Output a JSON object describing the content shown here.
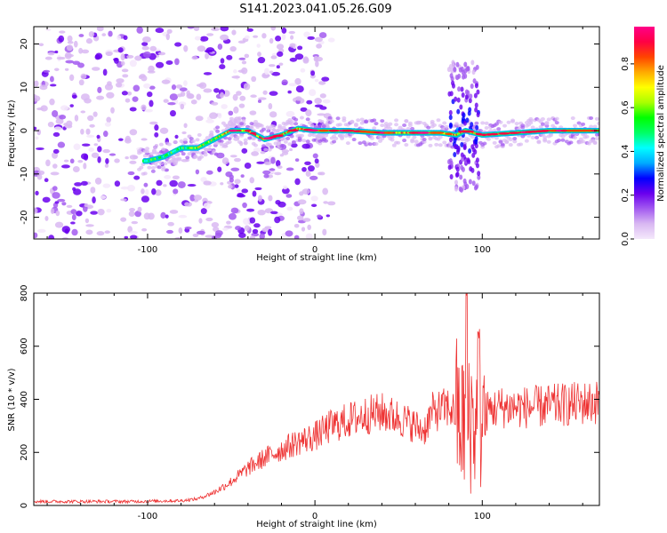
{
  "title": "S141.2023.041.05.26.G09",
  "chart_data": [
    {
      "type": "heatmap",
      "xlabel": "Height of straight line (km)",
      "ylabel": "Frequency (Hz)",
      "xlim": [
        -168,
        170
      ],
      "ylim": [
        -25,
        24
      ],
      "xticks": [
        -100,
        0,
        100
      ],
      "yticks": [
        -20,
        -10,
        0,
        10,
        20
      ],
      "colorbar": {
        "label": "Normalized spectral amplitude",
        "range": [
          0,
          0.97
        ],
        "ticks": [
          0.0,
          0.2,
          0.4,
          0.6,
          0.8
        ],
        "colors": [
          "#f4e8fb",
          "#d9b8f2",
          "#a35af0",
          "#6a00ee",
          "#0000ff",
          "#00aaff",
          "#00ffff",
          "#00ff66",
          "#00ff00",
          "#aaff00",
          "#ffff00",
          "#ffaa00",
          "#ff4400",
          "#ff0044",
          "#ff0088"
        ]
      },
      "ridge": [
        {
          "x": -100,
          "f": -7
        },
        {
          "x": -90,
          "f": -6
        },
        {
          "x": -80,
          "f": -4
        },
        {
          "x": -70,
          "f": -4
        },
        {
          "x": -60,
          "f": -2
        },
        {
          "x": -50,
          "f": 0
        },
        {
          "x": -40,
          "f": 0
        },
        {
          "x": -30,
          "f": -2
        },
        {
          "x": -20,
          "f": -1
        },
        {
          "x": -10,
          "f": 0.5
        },
        {
          "x": 0,
          "f": 0
        },
        {
          "x": 20,
          "f": 0
        },
        {
          "x": 40,
          "f": -0.5
        },
        {
          "x": 60,
          "f": -0.5
        },
        {
          "x": 75,
          "f": -0.5
        },
        {
          "x": 85,
          "f": -1
        },
        {
          "x": 90,
          "f": 0
        },
        {
          "x": 100,
          "f": -1
        },
        {
          "x": 120,
          "f": -0.5
        },
        {
          "x": 140,
          "f": 0
        },
        {
          "x": 170,
          "f": 0
        }
      ]
    },
    {
      "type": "line",
      "xlabel": "Height of straight line (km)",
      "ylabel": "SNR (10 * v/v)",
      "xlim": [
        -168,
        170
      ],
      "ylim": [
        0,
        800
      ],
      "xticks": [
        -100,
        0,
        100
      ],
      "yticks": [
        0,
        200,
        400,
        600,
        800
      ],
      "color": "#ee3333",
      "series": [
        {
          "points": [
            {
              "x": -168,
              "y": 15
            },
            {
              "x": -140,
              "y": 15
            },
            {
              "x": -110,
              "y": 15
            },
            {
              "x": -80,
              "y": 18
            },
            {
              "x": -70,
              "y": 25
            },
            {
              "x": -60,
              "y": 50
            },
            {
              "x": -50,
              "y": 90
            },
            {
              "x": -40,
              "y": 140
            },
            {
              "x": -30,
              "y": 180
            },
            {
              "x": -20,
              "y": 210
            },
            {
              "x": -10,
              "y": 240
            },
            {
              "x": 0,
              "y": 260
            },
            {
              "x": 10,
              "y": 300
            },
            {
              "x": 20,
              "y": 320
            },
            {
              "x": 30,
              "y": 340
            },
            {
              "x": 40,
              "y": 350
            },
            {
              "x": 50,
              "y": 330
            },
            {
              "x": 60,
              "y": 300
            },
            {
              "x": 65,
              "y": 280
            },
            {
              "x": 70,
              "y": 350
            },
            {
              "x": 80,
              "y": 370
            },
            {
              "x": 85,
              "y": 340
            },
            {
              "x": 88,
              "y": 300
            },
            {
              "x": 92,
              "y": 350
            },
            {
              "x": 96,
              "y": 300
            },
            {
              "x": 100,
              "y": 350
            },
            {
              "x": 110,
              "y": 370
            },
            {
              "x": 130,
              "y": 370
            },
            {
              "x": 150,
              "y": 380
            },
            {
              "x": 170,
              "y": 390
            }
          ]
        }
      ]
    }
  ]
}
